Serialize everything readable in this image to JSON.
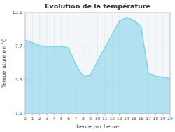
{
  "chart_data": {
    "type": "area",
    "title": "Evolution de la température",
    "xlabel": "heure par heure",
    "ylabel": "Température en °C",
    "x": [
      0,
      1,
      2,
      3,
      4,
      5,
      6,
      7,
      8,
      9,
      10,
      11,
      12,
      13,
      14,
      15,
      16,
      17,
      18,
      19,
      20
    ],
    "values": [
      8.5,
      8.2,
      7.8,
      7.7,
      7.7,
      7.7,
      7.5,
      5.3,
      3.8,
      3.9,
      5.8,
      7.5,
      9.2,
      11.0,
      11.5,
      11.1,
      10.3,
      4.2,
      3.8,
      3.7,
      3.5
    ],
    "color": "#7ecfe8",
    "xlim": [
      0,
      20
    ],
    "xticks": [
      0,
      1,
      2,
      3,
      4,
      5,
      6,
      7,
      8,
      9,
      10,
      11,
      12,
      13,
      14,
      15,
      16,
      17,
      18,
      19,
      20
    ],
    "ylim": [
      -1.1,
      12.1
    ],
    "yticks": [
      -1.1,
      3.3,
      7.7,
      12.1
    ],
    "grid": true
  }
}
